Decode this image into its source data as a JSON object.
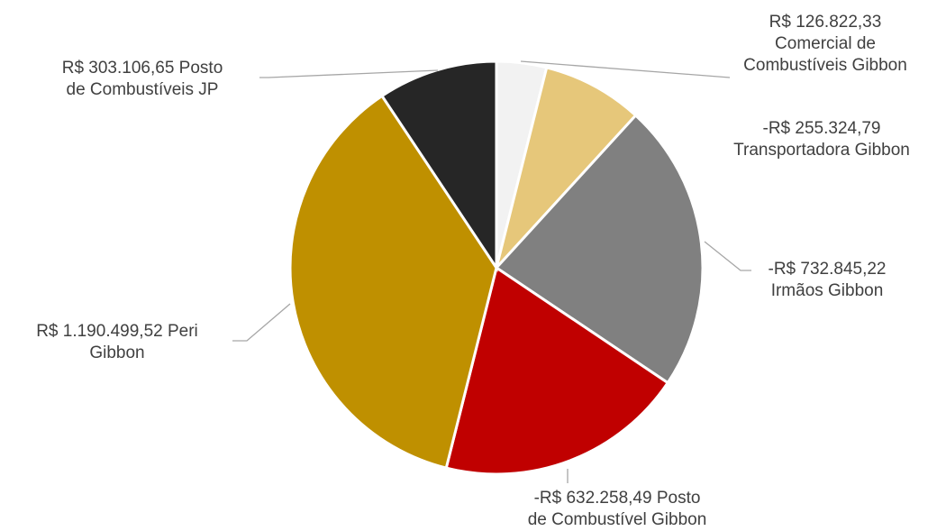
{
  "chart_data": {
    "type": "pie",
    "title": "",
    "slices": [
      {
        "label": "R$ 126.822,33 Comercial de Combustíveis Gibbon",
        "value": 126822.33,
        "color": "#f2f2f2"
      },
      {
        "label": "-R$ 255.324,79 Transportadora Gibbon",
        "value": 255324.79,
        "color": "#e6c77a"
      },
      {
        "label": "-R$ 732.845,22 Irmãos Gibbon",
        "value": 732845.22,
        "color": "#808080"
      },
      {
        "label": "-R$ 632.258,49 Posto de Combustível Gibbon",
        "value": 632258.49,
        "color": "#c00000"
      },
      {
        "label": "R$ 1.190.499,52 Peri Gibbon",
        "value": 1190499.52,
        "color": "#bf9000"
      },
      {
        "label": "R$ 303.106,65 Posto de Combustíveis JP",
        "value": 303106.65,
        "color": "#262626"
      }
    ],
    "legend": "none",
    "label_line_color": "#a6a6a6"
  },
  "labels": {
    "comercial": "R$ 126.822,33\nComercial de\nCombustíveis Gibbon",
    "transportadora": "-R$ 255.324,79\nTransportadora Gibbon",
    "irmaos": "-R$ 732.845,22\nIrmãos Gibbon",
    "posto_gibbon": "-R$ 632.258,49  Posto\nde Combustível Gibbon",
    "peri": "R$ 1.190.499,52  Peri\nGibbon",
    "posto_jp": "R$ 303.106,65  Posto\nde Combustíveis JP"
  }
}
